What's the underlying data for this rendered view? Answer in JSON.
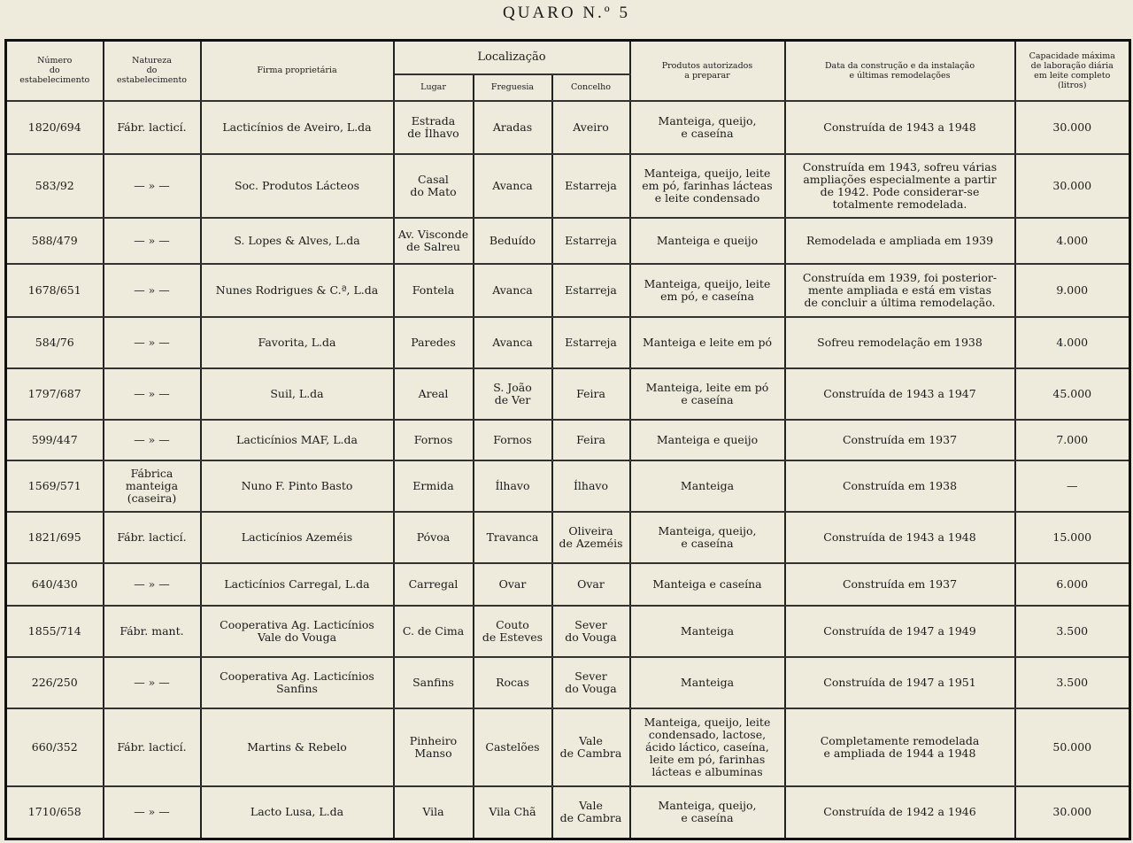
{
  "title": "QUARO N.º 5",
  "headers": {
    "numero": "Número\ndo\nestabelecimento",
    "natureza": "Natureza\ndo\nestabelecimento",
    "firma": "Firma proprietária",
    "localizacao": "Localização",
    "lugar": "Lugar",
    "freguesia": "Freguesia",
    "concelho": "Concelho",
    "produtos": "Produtos autorizados\na preparar",
    "data": "Data da construção e da instalação\ne últimas remodelações",
    "capacidade": "Capacidade máxima\nde laboração diária\nem leite completo\n(litros)"
  },
  "rows": [
    {
      "numero": "1820/694",
      "natureza": "Fábr. lacticí.",
      "firma": "Lacticínios de Aveiro, L.da",
      "lugar": "Estrada\nde Ílhavo",
      "freguesia": "Aradas",
      "concelho": "Aveiro",
      "produtos": "Manteiga, queijo,\ne caseína",
      "data": "Construída de 1943 a 1948",
      "capacidade": "30.000"
    },
    {
      "numero": "583/92",
      "natureza": "— » —",
      "firma": "Soc. Produtos Lácteos",
      "lugar": "Casal\ndo Mato",
      "freguesia": "Avanca",
      "concelho": "Estarreja",
      "produtos": "Manteiga, queijo, leite\nem pó, farinhas lácteas\ne leite condensado",
      "data": "Construída em 1943, sofreu várias\nampliações especialmente a partir\nde 1942. Pode considerar-se\ntotalmente remodelada.",
      "capacidade": "30.000"
    },
    {
      "numero": "588/479",
      "natureza": "— » —",
      "firma": "S. Lopes & Alves, L.da",
      "lugar": "Av. Visconde\nde Salreu",
      "freguesia": "Beduído",
      "concelho": "Estarreja",
      "produtos": "Manteiga e queijo",
      "data": "Remodelada e ampliada em 1939",
      "capacidade": "4.000"
    },
    {
      "numero": "1678/651",
      "natureza": "— » —",
      "firma": "Nunes Rodrigues & C.ª, L.da",
      "lugar": "Fontela",
      "freguesia": "Avanca",
      "concelho": "Estarreja",
      "produtos": "Manteiga, queijo, leite\nem pó, e caseína",
      "data": "Construída em 1939, foi posterior-\nmente ampliada e está em vistas\nde concluir a última remodelação.",
      "capacidade": "9.000"
    },
    {
      "numero": "584/76",
      "natureza": "— » —",
      "firma": "Favorita, L.da",
      "lugar": "Paredes",
      "freguesia": "Avanca",
      "concelho": "Estarreja",
      "produtos": "Manteiga e leite em pó",
      "data": "Sofreu remodelação em 1938",
      "capacidade": "4.000"
    },
    {
      "numero": "1797/687",
      "natureza": "— » —",
      "firma": "Suil, L.da",
      "lugar": "Areal",
      "freguesia": "S. João\nde Ver",
      "concelho": "Feira",
      "produtos": "Manteiga, leite em pó\ne caseína",
      "data": "Construída de 1943 a 1947",
      "capacidade": "45.000"
    },
    {
      "numero": "599/447",
      "natureza": "— » —",
      "firma": "Lacticínios MAF, L.da",
      "lugar": "Fornos",
      "freguesia": "Fornos",
      "concelho": "Feira",
      "produtos": "Manteiga e queijo",
      "data": "Construída em 1937",
      "capacidade": "7.000"
    },
    {
      "numero": "1569/571",
      "natureza": "Fábrica\nmanteiga\n(caseira)",
      "firma": "Nuno F. Pinto Basto",
      "lugar": "Ermida",
      "freguesia": "Ílhavo",
      "concelho": "Ílhavo",
      "produtos": "Manteiga",
      "data": "Construída em 1938",
      "capacidade": "—"
    },
    {
      "numero": "1821/695",
      "natureza": "Fábr. lacticí.",
      "firma": "Lacticínios Azeméis",
      "lugar": "Póvoa",
      "freguesia": "Travanca",
      "concelho": "Oliveira\nde Azeméis",
      "produtos": "Manteiga, queijo,\ne caseína",
      "data": "Construída de 1943 a 1948",
      "capacidade": "15.000"
    },
    {
      "numero": "640/430",
      "natureza": "— » —",
      "firma": "Lacticínios Carregal, L.da",
      "lugar": "Carregal",
      "freguesia": "Ovar",
      "concelho": "Ovar",
      "produtos": "Manteiga e caseína",
      "data": "Construída em 1937",
      "capacidade": "6.000"
    },
    {
      "numero": "1855/714",
      "natureza": "Fábr. mant.",
      "firma": "Cooperativa Ag. Lacticínios\nVale do Vouga",
      "lugar": "C. de Cima",
      "freguesia": "Couto\nde Esteves",
      "concelho": "Sever\ndo Vouga",
      "produtos": "Manteiga",
      "data": "Construída de 1947 a 1949",
      "capacidade": "3.500"
    },
    {
      "numero": "226/250",
      "natureza": "— » —",
      "firma": "Cooperativa Ag. Lacticínios\nSanfins",
      "lugar": "Sanfins",
      "freguesia": "Rocas",
      "concelho": "Sever\ndo Vouga",
      "produtos": "Manteiga",
      "data": "Construída de 1947 a 1951",
      "capacidade": "3.500"
    },
    {
      "numero": "660/352",
      "natureza": "Fábr. lacticí.",
      "firma": "Martins & Rebelo",
      "lugar": "Pinheiro\nManso",
      "freguesia": "Castelões",
      "concelho": "Vale\nde Cambra",
      "produtos": "Manteiga, queijo, leite\ncondensado, lactose,\nácido láctico, caseína,\nleite em pó, farinhas\nlácteas e albuminas",
      "data": "Completamente remodelada\ne ampliada de 1944 a 1948",
      "capacidade": "50.000"
    },
    {
      "numero": "1710/658",
      "natureza": "— » —",
      "firma": "Lacto Lusa, L.da",
      "lugar": "Vila",
      "freguesia": "Vila Chã",
      "concelho": "Vale\nde Cambra",
      "produtos": "Manteiga, queijo,\ne caseína",
      "data": "Construída de 1942 a 1946",
      "capacidade": "30.000"
    }
  ]
}
